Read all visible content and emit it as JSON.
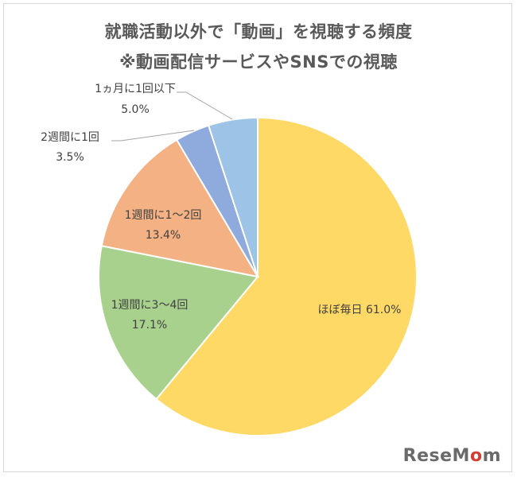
{
  "chart_data": {
    "type": "pie",
    "title": "就職活動以外で「動画」を視聴する頻度",
    "subtitle": "※動画配信サービスやSNSでの視聴",
    "slices": [
      {
        "label": "ほぼ毎日",
        "value": 61.0,
        "display": "61.0%",
        "color": "#ffd966"
      },
      {
        "label": "1週間に3～4回",
        "value": 17.1,
        "display": "17.1%",
        "color": "#a9d18e"
      },
      {
        "label": "1週間に1～2回",
        "value": 13.4,
        "display": "13.4%",
        "color": "#f4b183"
      },
      {
        "label": "2週間に1回",
        "value": 3.5,
        "display": "3.5%",
        "color": "#8faadc"
      },
      {
        "label": "1ヵ月に1回以下",
        "value": 5.0,
        "display": "5.0%",
        "color": "#9dc3e6"
      }
    ]
  },
  "watermark": {
    "prefix": "Rese",
    "mid": "M",
    "o": "o",
    "suffix": "m"
  }
}
